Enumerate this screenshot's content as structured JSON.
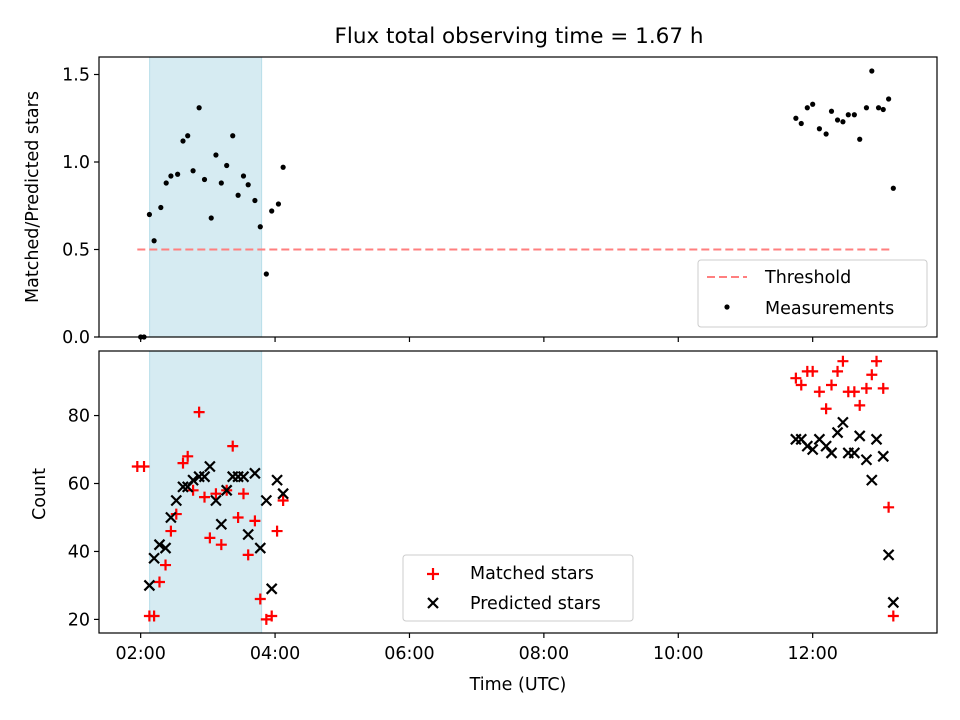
{
  "title": "Flux total observing time = 1.67 h",
  "colors": {
    "threshold": "#ff7f7f",
    "measurements": "#000000",
    "matched": "#ff0000",
    "predicted": "#000000",
    "shade": "#add8e6"
  },
  "chart_data": [
    {
      "type": "scatter",
      "ylabel": "Matched/Predicted stars",
      "ylim": [
        0,
        1.6
      ],
      "yticks": [
        "0.0",
        "0.5",
        "1.0",
        "1.5"
      ],
      "shaded_span": {
        "x_start": 2.133,
        "x_end": 3.8
      },
      "threshold": {
        "name": "Threshold",
        "value": 0.5,
        "x_range": [
          1.95,
          13.15
        ]
      },
      "legend": [
        "Threshold",
        "Measurements"
      ],
      "legend_placement": "lower-right",
      "series": [
        {
          "name": "Measurements",
          "x": [
            2.0,
            2.05,
            2.13,
            2.2,
            2.3,
            2.38,
            2.45,
            2.55,
            2.63,
            2.7,
            2.78,
            2.87,
            2.95,
            3.05,
            3.12,
            3.2,
            3.28,
            3.37,
            3.45,
            3.53,
            3.6,
            3.7,
            3.78,
            3.87,
            3.95,
            4.05,
            4.12,
            11.75,
            11.83,
            11.92,
            12.0,
            12.1,
            12.2,
            12.28,
            12.37,
            12.45,
            12.53,
            12.62,
            12.7,
            12.8,
            12.88,
            12.98,
            13.05,
            13.13,
            13.2
          ],
          "y": [
            0.0,
            0.0,
            0.7,
            0.55,
            0.74,
            0.88,
            0.92,
            0.93,
            1.12,
            1.15,
            0.95,
            1.31,
            0.9,
            0.68,
            1.04,
            0.88,
            0.98,
            1.15,
            0.81,
            0.92,
            0.87,
            0.78,
            0.63,
            0.36,
            0.72,
            0.76,
            0.97,
            1.25,
            1.22,
            1.31,
            1.33,
            1.19,
            1.16,
            1.29,
            1.24,
            1.23,
            1.27,
            1.27,
            1.13,
            1.31,
            1.52,
            1.31,
            1.3,
            1.36,
            0.85
          ]
        }
      ]
    },
    {
      "type": "scatter",
      "ylabel": "Count",
      "xlabel": "Time (UTC)",
      "ylim": [
        16,
        99
      ],
      "yticks": [
        "20",
        "40",
        "60",
        "80"
      ],
      "x_domain_hours": [
        1.38,
        13.85
      ],
      "xticks": [
        "02:00",
        "04:00",
        "06:00",
        "08:00",
        "10:00",
        "12:00"
      ],
      "shaded_span": {
        "x_start": 2.133,
        "x_end": 3.8
      },
      "legend": [
        "Matched stars",
        "Predicted stars"
      ],
      "legend_placement": "lower-center",
      "series": [
        {
          "name": "Matched stars",
          "x": [
            1.95,
            2.05,
            2.13,
            2.2,
            2.28,
            2.37,
            2.45,
            2.53,
            2.63,
            2.7,
            2.78,
            2.87,
            2.95,
            3.03,
            3.12,
            3.2,
            3.28,
            3.37,
            3.45,
            3.53,
            3.6,
            3.7,
            3.78,
            3.87,
            3.95,
            4.03,
            4.12,
            11.75,
            11.83,
            11.92,
            12.0,
            12.1,
            12.2,
            12.28,
            12.37,
            12.45,
            12.53,
            12.62,
            12.7,
            12.8,
            12.88,
            12.95,
            13.05,
            13.13,
            13.2
          ],
          "y": [
            65,
            65,
            21,
            21,
            31,
            36,
            46,
            51,
            66,
            68,
            58,
            81,
            56,
            44,
            57,
            42,
            58,
            71,
            50,
            57,
            39,
            49,
            26,
            20,
            21,
            46,
            55,
            91,
            89,
            93,
            93,
            87,
            82,
            89,
            93,
            96,
            87,
            87,
            83,
            88,
            92,
            96,
            88,
            53,
            21
          ]
        },
        {
          "name": "Predicted stars",
          "x": [
            2.13,
            2.2,
            2.28,
            2.37,
            2.45,
            2.53,
            2.63,
            2.7,
            2.78,
            2.87,
            2.95,
            3.03,
            3.12,
            3.2,
            3.28,
            3.37,
            3.45,
            3.53,
            3.6,
            3.7,
            3.78,
            3.87,
            3.95,
            4.03,
            4.12,
            11.75,
            11.83,
            11.92,
            12.0,
            12.1,
            12.2,
            12.28,
            12.37,
            12.45,
            12.53,
            12.62,
            12.7,
            12.8,
            12.88,
            12.95,
            13.05,
            13.13,
            13.2
          ],
          "y": [
            30,
            38,
            42,
            41,
            50,
            55,
            59,
            59,
            61,
            62,
            62,
            65,
            55,
            48,
            58,
            62,
            62,
            62,
            45,
            63,
            41,
            55,
            29,
            61,
            57,
            73,
            73,
            71,
            70,
            73,
            71,
            69,
            75,
            78,
            69,
            69,
            74,
            67,
            61,
            73,
            68,
            39,
            25
          ]
        }
      ]
    }
  ]
}
